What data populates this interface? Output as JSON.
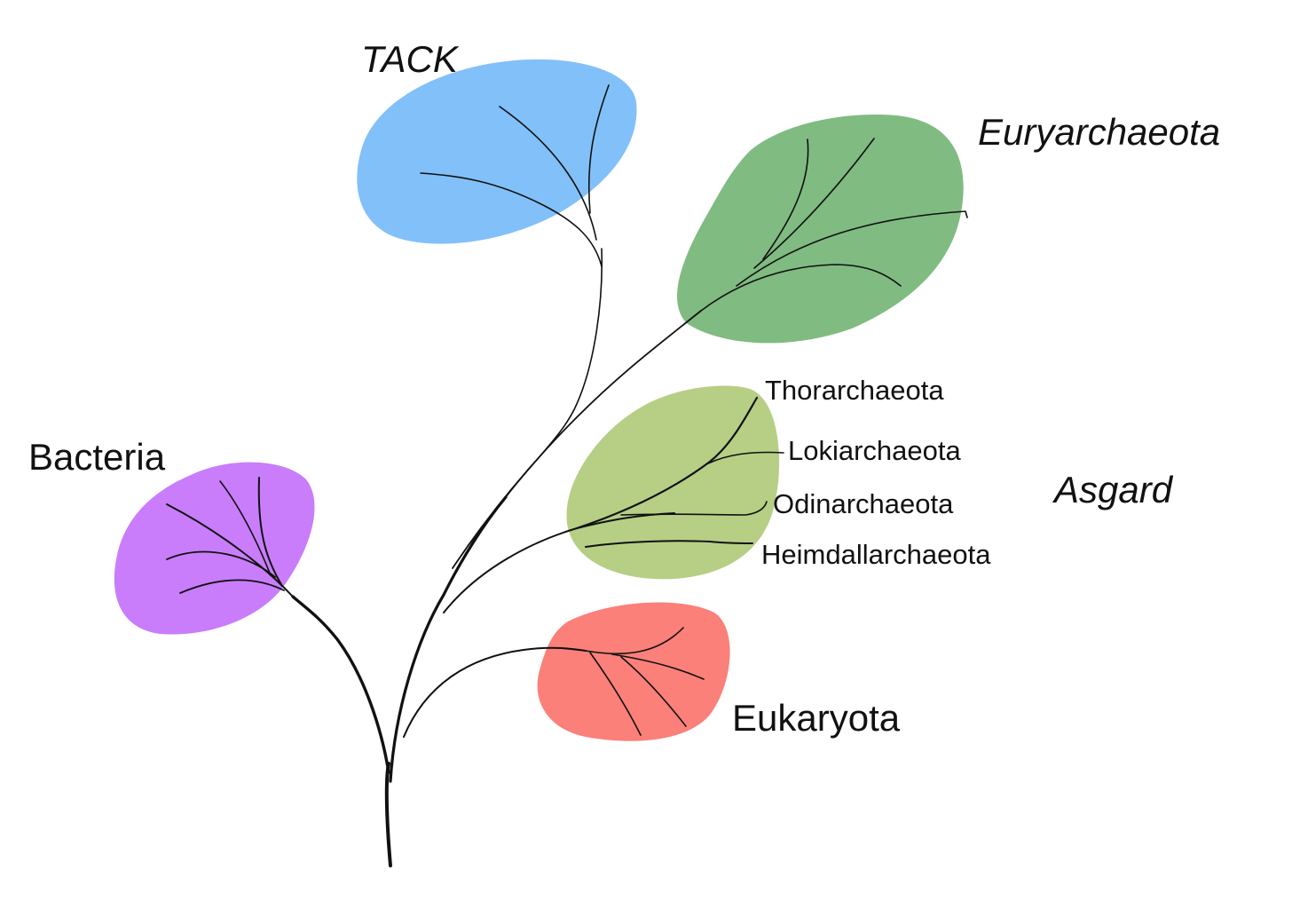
{
  "groups": {
    "bacteria": {
      "label": "Bacteria",
      "color": "#c97dfb"
    },
    "tack": {
      "label": "TACK",
      "color": "#82c0f9"
    },
    "euryarchaeota": {
      "label": "Euryarchaeota",
      "color": "#80bb81"
    },
    "asgard": {
      "label": "Asgard",
      "color": "#b6cf85",
      "subgroups": [
        "Thorarchaeota",
        "Lokiarchaeota",
        "Odinarchaeota",
        "Heimdallarchaeota"
      ]
    },
    "eukaryota": {
      "label": "Eukaryota",
      "color": "#fa8079"
    }
  },
  "line_color": "#111111"
}
